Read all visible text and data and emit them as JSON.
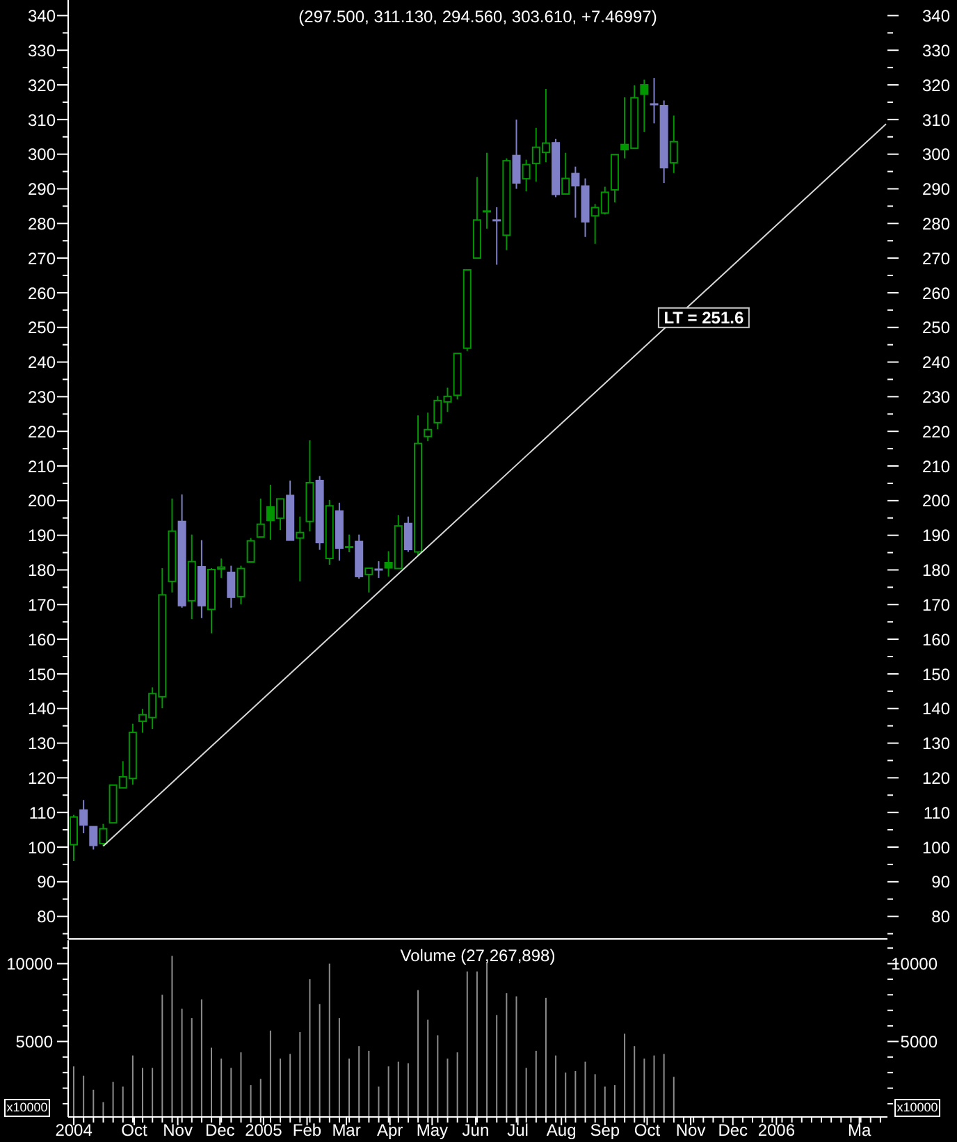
{
  "chart_data": [
    {
      "type": "candlestick",
      "title": "(297.500, 311.130, 294.560, 303.610, +7.46997)",
      "x": [
        "2004-08-19",
        "2004-08-26",
        "2004-09-02",
        "2004-09-09",
        "2004-09-16",
        "2004-09-23",
        "2004-09-30",
        "2004-10-07",
        "2004-10-14",
        "2004-10-21",
        "2004-10-28",
        "2004-11-04",
        "2004-11-11",
        "2004-11-18",
        "2004-11-25",
        "2004-12-02",
        "2004-12-09",
        "2004-12-16",
        "2004-12-23",
        "2004-12-30",
        "2005-01-06",
        "2005-01-13",
        "2005-01-20",
        "2005-01-27",
        "2005-02-03",
        "2005-02-10",
        "2005-02-17",
        "2005-02-24",
        "2005-03-03",
        "2005-03-10",
        "2005-03-17",
        "2005-03-24",
        "2005-03-31",
        "2005-04-07",
        "2005-04-14",
        "2005-04-21",
        "2005-04-28",
        "2005-05-05",
        "2005-05-12",
        "2005-05-19",
        "2005-05-26",
        "2005-06-02",
        "2005-06-09",
        "2005-06-16",
        "2005-06-23",
        "2005-06-30",
        "2005-07-07",
        "2005-07-14",
        "2005-07-21",
        "2005-07-28",
        "2005-08-04",
        "2005-08-11",
        "2005-08-18",
        "2005-08-25",
        "2005-09-01",
        "2005-09-08",
        "2005-09-15",
        "2005-09-22",
        "2005-09-29",
        "2005-10-06",
        "2005-10-13",
        "2005-10-20"
      ],
      "ohlc": [
        [
          100.7,
          109.3,
          96.0,
          108.7
        ],
        [
          110.7,
          113.6,
          104.0,
          106.4
        ],
        [
          105.9,
          105.9,
          99.3,
          100.5
        ],
        [
          101.0,
          106.7,
          100.3,
          105.3
        ],
        [
          107.0,
          117.9,
          107.0,
          117.9
        ],
        [
          117.1,
          124.8,
          117.1,
          120.3
        ],
        [
          119.8,
          135.6,
          118.0,
          133.1
        ],
        [
          136.3,
          139.9,
          133.0,
          138.2
        ],
        [
          137.4,
          146.1,
          134.1,
          144.3
        ],
        [
          143.4,
          180.5,
          140.1,
          172.8
        ],
        [
          176.7,
          200.6,
          173.5,
          191.2
        ],
        [
          194.0,
          201.8,
          169.1,
          169.7
        ],
        [
          171.1,
          190.2,
          165.8,
          182.4
        ],
        [
          180.9,
          188.6,
          166.1,
          169.7
        ],
        [
          168.6,
          180.5,
          161.7,
          180.1
        ],
        [
          180.3,
          183.3,
          177.7,
          180.8
        ],
        [
          179.3,
          181.2,
          169.1,
          172.1
        ],
        [
          172.3,
          181.2,
          170.1,
          180.4
        ],
        [
          182.3,
          189.2,
          182.3,
          188.4
        ],
        [
          189.5,
          200.6,
          189.5,
          193.2
        ],
        [
          198.2,
          204.6,
          188.7,
          194.3
        ],
        [
          194.9,
          200.5,
          191.5,
          200.5
        ],
        [
          201.5,
          205.8,
          188.6,
          188.6
        ],
        [
          189.2,
          195.4,
          176.7,
          190.8
        ],
        [
          194.0,
          217.4,
          191.1,
          205.2
        ],
        [
          205.8,
          207.1,
          185.8,
          187.9
        ],
        [
          183.3,
          200.2,
          181.5,
          198.5
        ],
        [
          197.0,
          199.4,
          182.7,
          186.3
        ],
        [
          186.5,
          190.2,
          185.1,
          186.7
        ],
        [
          188.2,
          190.2,
          177.5,
          178.1
        ],
        [
          178.7,
          180.5,
          173.5,
          180.5
        ],
        [
          180.2,
          182.5,
          177.7,
          180.0
        ],
        [
          182.1,
          185.4,
          178.1,
          180.6
        ],
        [
          180.4,
          195.8,
          180.4,
          192.7
        ],
        [
          193.4,
          195.4,
          185.2,
          185.9
        ],
        [
          185.2,
          224.6,
          184.1,
          216.5
        ],
        [
          218.5,
          225.4,
          217.2,
          220.5
        ],
        [
          222.5,
          230.2,
          220.6,
          228.9
        ],
        [
          228.5,
          232.6,
          225.6,
          230.1
        ],
        [
          230.4,
          242.5,
          229.2,
          242.5
        ],
        [
          244.0,
          266.6,
          243.2,
          266.6
        ],
        [
          270.0,
          293.4,
          270.0,
          281.0
        ],
        [
          283.4,
          300.4,
          278.5,
          283.6
        ],
        [
          281.0,
          284.7,
          268.1,
          280.8
        ],
        [
          276.6,
          298.8,
          272.3,
          298.1
        ],
        [
          299.6,
          310.0,
          290.0,
          291.7
        ],
        [
          292.9,
          298.4,
          289.3,
          297.0
        ],
        [
          297.3,
          307.6,
          292.1,
          302.0
        ],
        [
          300.5,
          318.8,
          297.7,
          303.2
        ],
        [
          303.3,
          304.4,
          287.6,
          288.4
        ],
        [
          288.5,
          300.4,
          288.5,
          293.0
        ],
        [
          294.4,
          296.4,
          281.7,
          290.9
        ],
        [
          290.8,
          293.0,
          276.1,
          280.5
        ],
        [
          282.2,
          285.6,
          274.1,
          284.6
        ],
        [
          283.0,
          290.6,
          282.6,
          289.0
        ],
        [
          289.7,
          299.9,
          286.1,
          299.9
        ],
        [
          302.8,
          316.4,
          298.8,
          301.3
        ],
        [
          301.7,
          319.9,
          301.7,
          316.3
        ],
        [
          320.0,
          321.5,
          306.4,
          317.3
        ],
        [
          314.5,
          322.0,
          308.9,
          314.3
        ],
        [
          314.0,
          315.5,
          291.7,
          296.1
        ],
        [
          297.5,
          311.13,
          294.56,
          303.61
        ]
      ],
      "colors": [
        "#009600",
        "#8080c8",
        "#8080c8",
        "#009600",
        "#009600",
        "#009600",
        "#009600",
        "#009600",
        "#009600",
        "#009600",
        "#009600",
        "#8080c8",
        "#009600",
        "#8080c8",
        "#009600",
        "#009600",
        "#8080c8",
        "#009600",
        "#009600",
        "#009600",
        "#009600",
        "#009600",
        "#8080c8",
        "#009600",
        "#009600",
        "#8080c8",
        "#009600",
        "#8080c8",
        "#009600",
        "#8080c8",
        "#009600",
        "#8080c8",
        "#009600",
        "#009600",
        "#8080c8",
        "#009600",
        "#009600",
        "#009600",
        "#009600",
        "#009600",
        "#009600",
        "#009600",
        "#009600",
        "#8080c8",
        "#009600",
        "#8080c8",
        "#009600",
        "#009600",
        "#009600",
        "#8080c8",
        "#009600",
        "#8080c8",
        "#8080c8",
        "#009600",
        "#009600",
        "#009600",
        "#009600",
        "#009600",
        "#009600",
        "#8080c8",
        "#8080c8",
        "#009600"
      ],
      "xlim": [
        "2004-08-15",
        "2006-03-21"
      ],
      "ylim": [
        73.5,
        344.5
      ],
      "yticks": [
        {
          "value": 75,
          "label": null
        },
        80,
        {
          "value": 85,
          "label": null
        },
        90,
        {
          "value": 95,
          "label": null
        },
        100,
        {
          "value": 105,
          "label": null
        },
        110,
        {
          "value": 115,
          "label": null
        },
        120,
        {
          "value": 125,
          "label": null
        },
        130,
        {
          "value": 135,
          "label": null
        },
        140,
        {
          "value": 145,
          "label": null
        },
        150,
        {
          "value": 155,
          "label": null
        },
        160,
        {
          "value": 165,
          "label": null
        },
        170,
        {
          "value": 175,
          "label": null
        },
        180,
        {
          "value": 185,
          "label": null
        },
        190,
        {
          "value": 195,
          "label": null
        },
        200,
        {
          "value": 205,
          "label": null
        },
        210,
        {
          "value": 215,
          "label": null
        },
        220,
        {
          "value": 225,
          "label": null
        },
        230,
        {
          "value": 235,
          "label": null
        },
        240,
        {
          "value": 245,
          "label": null
        },
        250,
        {
          "value": 255,
          "label": null
        },
        260,
        {
          "value": 265,
          "label": null
        },
        270,
        {
          "value": 275,
          "label": null
        },
        280,
        {
          "value": 285,
          "label": null
        },
        290,
        {
          "value": 295,
          "label": null
        },
        300,
        {
          "value": 305,
          "label": null
        },
        310,
        {
          "value": 315,
          "label": null
        },
        320,
        {
          "value": 325,
          "label": null
        },
        330,
        {
          "value": 335,
          "label": null
        },
        340
      ],
      "y2lim": [
        73.5,
        344.5
      ],
      "y2ticks": [
        {
          "value": 75,
          "label": null
        },
        80,
        {
          "value": 85,
          "label": null
        },
        90,
        {
          "value": 95,
          "label": null
        },
        100,
        {
          "value": 105,
          "label": null
        },
        110,
        {
          "value": 115,
          "label": null
        },
        120,
        {
          "value": 125,
          "label": null
        },
        130,
        {
          "value": 135,
          "label": null
        },
        140,
        {
          "value": 145,
          "label": null
        },
        150,
        {
          "value": 155,
          "label": null
        },
        160,
        {
          "value": 165,
          "label": null
        },
        170,
        {
          "value": 175,
          "label": null
        },
        180,
        {
          "value": 185,
          "label": null
        },
        190,
        {
          "value": 195,
          "label": null
        },
        200,
        {
          "value": 205,
          "label": null
        },
        210,
        {
          "value": 215,
          "label": null
        },
        220,
        {
          "value": 225,
          "label": null
        },
        230,
        {
          "value": 235,
          "label": null
        },
        240,
        {
          "value": 245,
          "label": null
        },
        250,
        {
          "value": 255,
          "label": null
        },
        260,
        {
          "value": 265,
          "label": null
        },
        270,
        {
          "value": 275,
          "label": null
        },
        280,
        {
          "value": 285,
          "label": null
        },
        290,
        {
          "value": 295,
          "label": null
        },
        300,
        {
          "value": 305,
          "label": null
        },
        310,
        {
          "value": 315,
          "label": null
        },
        320,
        {
          "value": 325,
          "label": null
        },
        330,
        {
          "value": 335,
          "label": null
        },
        340
      ],
      "tick_labels": "y",
      "series": [
        {
          "type": "line",
          "x": [
            "2004-09-09",
            "2006-03-20"
          ],
          "values": [
            100.3,
            308.7
          ],
          "color": "#d8d8d8"
        }
      ],
      "annotations": [
        {
          "text": "LT = 251.6",
          "x": "2005-10-20",
          "y": 251.6
        }
      ]
    },
    {
      "type": "bar",
      "title": "Volume (27,267,898)",
      "ylabel": "x10000",
      "y2label": "x10000",
      "x": [
        "2004-08-19",
        "2004-08-26",
        "2004-09-02",
        "2004-09-09",
        "2004-09-16",
        "2004-09-23",
        "2004-09-30",
        "2004-10-07",
        "2004-10-14",
        "2004-10-21",
        "2004-10-28",
        "2004-11-04",
        "2004-11-11",
        "2004-11-18",
        "2004-11-25",
        "2004-12-02",
        "2004-12-09",
        "2004-12-16",
        "2004-12-23",
        "2004-12-30",
        "2005-01-06",
        "2005-01-13",
        "2005-01-20",
        "2005-01-27",
        "2005-02-03",
        "2005-02-10",
        "2005-02-17",
        "2005-02-24",
        "2005-03-03",
        "2005-03-10",
        "2005-03-17",
        "2005-03-24",
        "2005-03-31",
        "2005-04-07",
        "2005-04-14",
        "2005-04-21",
        "2005-04-28",
        "2005-05-05",
        "2005-05-12",
        "2005-05-19",
        "2005-05-26",
        "2005-06-02",
        "2005-06-09",
        "2005-06-16",
        "2005-06-23",
        "2005-06-30",
        "2005-07-07",
        "2005-07-14",
        "2005-07-21",
        "2005-07-28",
        "2005-08-04",
        "2005-08-11",
        "2005-08-18",
        "2005-08-25",
        "2005-09-01",
        "2005-09-08",
        "2005-09-15",
        "2005-09-22",
        "2005-09-29",
        "2005-10-06",
        "2005-10-13",
        "2005-10-20"
      ],
      "values": [
        3400,
        2800,
        1900,
        1100,
        2400,
        2100,
        4100,
        3300,
        3300,
        8000,
        10500,
        7100,
        6500,
        7700,
        4600,
        3900,
        3300,
        4300,
        2200,
        2600,
        5700,
        3900,
        4200,
        5600,
        9000,
        7400,
        10000,
        6500,
        3900,
        4700,
        4400,
        2100,
        3400,
        3700,
        3600,
        8300,
        6400,
        5400,
        3900,
        4300,
        9500,
        9500,
        10100,
        6700,
        8100,
        7900,
        3300,
        4400,
        7800,
        4100,
        3000,
        3100,
        3700,
        2900,
        2100,
        2200,
        5500,
        4700,
        3900,
        4100,
        4200,
        2727
      ],
      "color": "#8c8c8c",
      "xlim": [
        "2004-08-15",
        "2006-03-21"
      ],
      "xticks": [
        {
          "value": "2004-08-19",
          "label": "2004"
        },
        {
          "value": "2004-10-01",
          "label": "Oct"
        },
        {
          "value": "2004-11-01",
          "label": "Nov"
        },
        {
          "value": "2004-12-01",
          "label": "Dec"
        },
        {
          "value": "2005-01-01",
          "label": "2005"
        },
        {
          "value": "2005-02-01",
          "label": "Feb"
        },
        {
          "value": "2005-03-01",
          "label": "Mar"
        },
        {
          "value": "2005-04-01",
          "label": "Apr"
        },
        {
          "value": "2005-05-01",
          "label": "May"
        },
        {
          "value": "2005-06-01",
          "label": "Jun"
        },
        {
          "value": "2005-07-01",
          "label": "Jul"
        },
        {
          "value": "2005-08-01",
          "label": "Aug"
        },
        {
          "value": "2005-09-01",
          "label": "Sep"
        },
        {
          "value": "2005-10-01",
          "label": "Oct"
        },
        {
          "value": "2005-11-01",
          "label": "Nov"
        },
        {
          "value": "2005-12-01",
          "label": "Dec"
        },
        {
          "value": "2006-01-01",
          "label": "2006"
        },
        {
          "value": "2006-03-01",
          "label": "Ma"
        },
        {
          "value": "2004-08-26",
          "label": null
        },
        {
          "value": "2004-09-02",
          "label": null
        },
        {
          "value": "2004-09-09",
          "label": null
        },
        {
          "value": "2004-09-16",
          "label": null
        },
        {
          "value": "2004-09-23",
          "label": null
        },
        {
          "value": "2004-09-30",
          "label": null
        },
        {
          "value": "2004-10-07",
          "label": null
        },
        {
          "value": "2004-10-14",
          "label": null
        },
        {
          "value": "2004-10-21",
          "label": null
        },
        {
          "value": "2004-10-28",
          "label": null
        },
        {
          "value": "2004-11-04",
          "label": null
        },
        {
          "value": "2004-11-11",
          "label": null
        },
        {
          "value": "2004-11-18",
          "label": null
        },
        {
          "value": "2004-11-25",
          "label": null
        },
        {
          "value": "2004-12-02",
          "label": null
        },
        {
          "value": "2004-12-09",
          "label": null
        },
        {
          "value": "2004-12-16",
          "label": null
        },
        {
          "value": "2004-12-23",
          "label": null
        },
        {
          "value": "2004-12-30",
          "label": null
        },
        {
          "value": "2005-01-06",
          "label": null
        },
        {
          "value": "2005-01-13",
          "label": null
        },
        {
          "value": "2005-01-20",
          "label": null
        },
        {
          "value": "2005-01-27",
          "label": null
        },
        {
          "value": "2005-02-03",
          "label": null
        },
        {
          "value": "2005-02-10",
          "label": null
        },
        {
          "value": "2005-02-17",
          "label": null
        },
        {
          "value": "2005-02-24",
          "label": null
        },
        {
          "value": "2005-03-03",
          "label": null
        },
        {
          "value": "2005-03-10",
          "label": null
        },
        {
          "value": "2005-03-17",
          "label": null
        },
        {
          "value": "2005-03-24",
          "label": null
        },
        {
          "value": "2005-03-31",
          "label": null
        },
        {
          "value": "2005-04-07",
          "label": null
        },
        {
          "value": "2005-04-14",
          "label": null
        },
        {
          "value": "2005-04-21",
          "label": null
        },
        {
          "value": "2005-04-28",
          "label": null
        },
        {
          "value": "2005-05-05",
          "label": null
        },
        {
          "value": "2005-05-12",
          "label": null
        },
        {
          "value": "2005-05-19",
          "label": null
        },
        {
          "value": "2005-05-26",
          "label": null
        },
        {
          "value": "2005-06-02",
          "label": null
        },
        {
          "value": "2005-06-09",
          "label": null
        },
        {
          "value": "2005-06-16",
          "label": null
        },
        {
          "value": "2005-06-23",
          "label": null
        },
        {
          "value": "2005-06-30",
          "label": null
        },
        {
          "value": "2005-07-07",
          "label": null
        },
        {
          "value": "2005-07-14",
          "label": null
        },
        {
          "value": "2005-07-21",
          "label": null
        },
        {
          "value": "2005-07-28",
          "label": null
        },
        {
          "value": "2005-08-04",
          "label": null
        },
        {
          "value": "2005-08-11",
          "label": null
        },
        {
          "value": "2005-08-18",
          "label": null
        },
        {
          "value": "2005-08-25",
          "label": null
        },
        {
          "value": "2005-09-08",
          "label": null
        },
        {
          "value": "2005-09-15",
          "label": null
        },
        {
          "value": "2005-09-22",
          "label": null
        },
        {
          "value": "2005-09-29",
          "label": null
        },
        {
          "value": "2005-10-06",
          "label": null
        },
        {
          "value": "2005-10-13",
          "label": null
        },
        {
          "value": "2005-10-20",
          "label": null
        },
        {
          "value": "2005-10-27",
          "label": null
        },
        {
          "value": "2005-11-03",
          "label": null
        },
        {
          "value": "2005-11-10",
          "label": null
        },
        {
          "value": "2005-11-17",
          "label": null
        },
        {
          "value": "2005-11-24",
          "label": null
        },
        {
          "value": "2005-12-08",
          "label": null
        },
        {
          "value": "2005-12-15",
          "label": null
        },
        {
          "value": "2005-12-22",
          "label": null
        },
        {
          "value": "2005-12-29",
          "label": null
        },
        {
          "value": "2006-01-05",
          "label": null
        },
        {
          "value": "2006-01-12",
          "label": null
        },
        {
          "value": "2006-01-19",
          "label": null
        },
        {
          "value": "2006-01-26",
          "label": null
        },
        {
          "value": "2006-02-02",
          "label": null
        },
        {
          "value": "2006-02-09",
          "label": null
        },
        {
          "value": "2006-02-16",
          "label": null
        },
        {
          "value": "2006-02-23",
          "label": null
        },
        {
          "value": "2006-03-02",
          "label": null
        },
        {
          "value": "2006-03-09",
          "label": null
        },
        {
          "value": "2006-03-16",
          "label": null
        }
      ],
      "ylim": [
        150,
        11500
      ],
      "yticks": [
        {
          "value": 1000,
          "label": null
        },
        {
          "value": 2000,
          "label": null
        },
        {
          "value": 3000,
          "label": null
        },
        {
          "value": 4000,
          "label": null
        },
        5000,
        {
          "value": 6000,
          "label": null
        },
        {
          "value": 7000,
          "label": null
        },
        {
          "value": 8000,
          "label": null
        },
        {
          "value": 9000,
          "label": null
        },
        10000,
        {
          "value": 11000,
          "label": null
        }
      ],
      "y2lim": [
        150,
        11500
      ],
      "y2ticks": [
        {
          "value": 1000,
          "label": null
        },
        {
          "value": 2000,
          "label": null
        },
        {
          "value": 3000,
          "label": null
        },
        {
          "value": 4000,
          "label": null
        },
        5000,
        {
          "value": 6000,
          "label": null
        },
        {
          "value": 7000,
          "label": null
        },
        {
          "value": 8000,
          "label": null
        },
        {
          "value": 9000,
          "label": null
        },
        10000,
        {
          "value": 11000,
          "label": null
        }
      ]
    }
  ]
}
